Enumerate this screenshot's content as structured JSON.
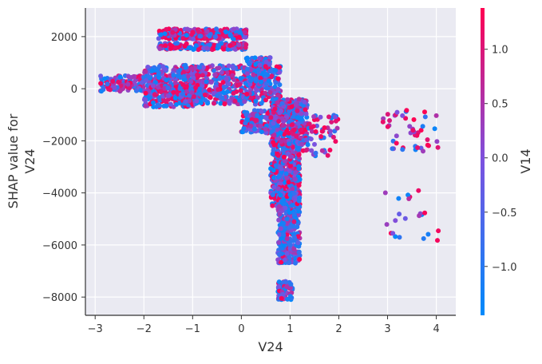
{
  "chart_data": {
    "type": "scatter",
    "title": "",
    "xlabel": "V24",
    "ylabel_lines": [
      "SHAP value for",
      "V24"
    ],
    "xlim": [
      -3.2,
      4.4
    ],
    "ylim": [
      -8700,
      3100
    ],
    "x_ticks": [
      -3,
      -2,
      -1,
      0,
      1,
      2,
      3,
      4
    ],
    "y_ticks": [
      2000,
      0,
      -2000,
      -4000,
      -6000,
      -8000
    ],
    "grid": true,
    "colorbar": {
      "label": "V14",
      "range": [
        -1.45,
        1.38
      ],
      "ticks": [
        1.0,
        0.5,
        0.0,
        -0.5,
        -1.0
      ],
      "tick_labels": [
        "1.0",
        "0.5",
        "0.0",
        "−0.5",
        "−1.0"
      ],
      "color_low": "#008afb",
      "color_mid": "#7b52e0",
      "color_high": "#ff0052"
    },
    "clusters": [
      {
        "x_range": [
          -1.7,
          0.1
        ],
        "y_range": [
          1900,
          2300
        ],
        "count": 260,
        "color_bias": 0.75
      },
      {
        "x_range": [
          -1.7,
          0.1
        ],
        "y_range": [
          1500,
          1750
        ],
        "count": 200,
        "color_bias": 0.7
      },
      {
        "x_range": [
          -2.9,
          -2.0
        ],
        "y_range": [
          -100,
          500
        ],
        "count": 120,
        "color_bias": 0.5
      },
      {
        "x_range": [
          -2.0,
          -0.9
        ],
        "y_range": [
          -700,
          900
        ],
        "count": 380,
        "color_bias": 0.5
      },
      {
        "x_range": [
          -1.2,
          0.8
        ],
        "y_range": [
          -600,
          900
        ],
        "count": 520,
        "color_bias": 0.45
      },
      {
        "x_range": [
          0.1,
          0.6
        ],
        "y_range": [
          100,
          1200
        ],
        "count": 120,
        "color_bias": 0.3
      },
      {
        "x_range": [
          0.0,
          0.7
        ],
        "y_range": [
          -1700,
          -800
        ],
        "count": 160,
        "color_bias": 0.55
      },
      {
        "x_range": [
          0.6,
          1.35
        ],
        "y_range": [
          -2200,
          -400
        ],
        "count": 460,
        "color_bias": 0.55
      },
      {
        "x_range": [
          0.6,
          1.2
        ],
        "y_range": [
          -4500,
          -2000
        ],
        "count": 420,
        "color_bias": 0.55
      },
      {
        "x_range": [
          0.75,
          1.2
        ],
        "y_range": [
          -6700,
          -4000
        ],
        "count": 360,
        "color_bias": 0.2
      },
      {
        "x_range": [
          0.75,
          1.05
        ],
        "y_range": [
          -8100,
          -7400
        ],
        "count": 70,
        "color_bias": 0.4
      },
      {
        "x_range": [
          1.2,
          2.0
        ],
        "y_range": [
          -2600,
          -1000
        ],
        "count": 60,
        "color_bias": 0.65
      },
      {
        "x_range": [
          2.9,
          4.05
        ],
        "y_range": [
          -2400,
          -800
        ],
        "count": 45,
        "color_bias": 0.6
      },
      {
        "x_range": [
          2.9,
          4.05
        ],
        "y_range": [
          -5900,
          -3900
        ],
        "count": 22,
        "color_bias": 0.5
      }
    ]
  }
}
